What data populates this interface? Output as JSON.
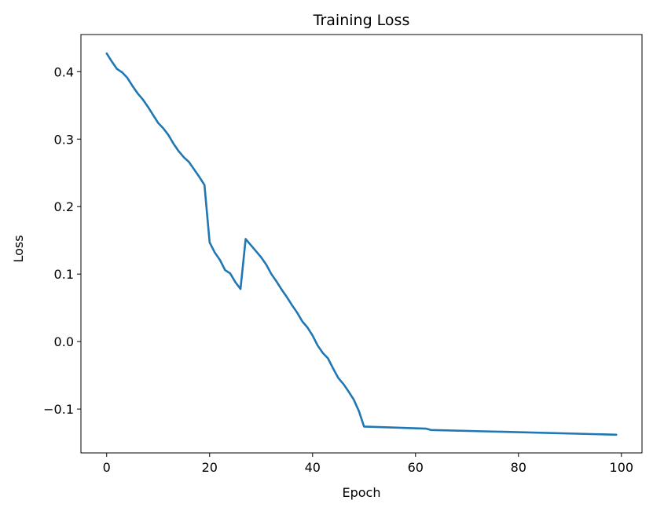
{
  "chart_data": {
    "type": "line",
    "title": "Training Loss",
    "xlabel": "Epoch",
    "ylabel": "Loss",
    "xlim": [
      -5,
      104
    ],
    "ylim": [
      -0.165,
      0.455
    ],
    "xticks": [
      0,
      20,
      40,
      60,
      80,
      100
    ],
    "xtick_labels": [
      "0",
      "20",
      "40",
      "60",
      "80",
      "100"
    ],
    "yticks": [
      -0.1,
      0.0,
      0.1,
      0.2,
      0.3,
      0.4
    ],
    "ytick_labels": [
      "−0.1",
      "0.0",
      "0.1",
      "0.2",
      "0.3",
      "0.4"
    ],
    "grid": false,
    "color": "#1f77b4",
    "series": [
      {
        "x": [
          0,
          1,
          2,
          3,
          4,
          5,
          6,
          7,
          8,
          9,
          10,
          11,
          12,
          13,
          14,
          15,
          16,
          17,
          18,
          19,
          20,
          21,
          22,
          23,
          24,
          25,
          26,
          27,
          28,
          29,
          30,
          31,
          32,
          33,
          34,
          35,
          36,
          37,
          38,
          39,
          40,
          41,
          42,
          43,
          44,
          45,
          46,
          47,
          48,
          49,
          50,
          62,
          63,
          99
        ],
        "values": [
          0.427,
          0.415,
          0.404,
          0.399,
          0.391,
          0.379,
          0.368,
          0.359,
          0.348,
          0.336,
          0.324,
          0.316,
          0.306,
          0.293,
          0.282,
          0.273,
          0.266,
          0.255,
          0.244,
          0.232,
          0.147,
          0.132,
          0.121,
          0.106,
          0.101,
          0.088,
          0.078,
          0.152,
          0.143,
          0.134,
          0.125,
          0.114,
          0.1,
          0.089,
          0.077,
          0.066,
          0.054,
          0.043,
          0.03,
          0.021,
          0.009,
          -0.006,
          -0.017,
          -0.025,
          -0.04,
          -0.054,
          -0.063,
          -0.074,
          -0.086,
          -0.103,
          -0.126,
          -0.129,
          -0.131,
          -0.138
        ]
      }
    ]
  }
}
